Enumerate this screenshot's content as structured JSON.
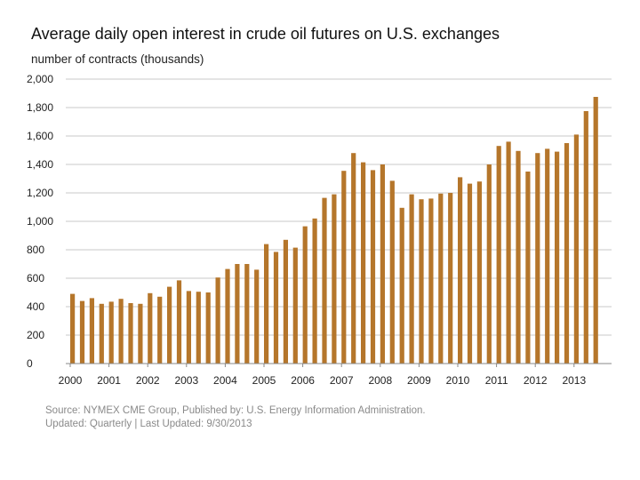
{
  "chart_data": {
    "type": "bar",
    "title": "Average daily open interest in crude oil futures on U.S. exchanges",
    "ylabel": "number of contracts (thousands)",
    "xlabel": "",
    "ylim": [
      0,
      2000
    ],
    "yticks": [
      "0",
      "200",
      "400",
      "600",
      "800",
      "1,000",
      "1,200",
      "1,400",
      "1,600",
      "1,800",
      "2,000"
    ],
    "ytick_values": [
      0,
      200,
      400,
      600,
      800,
      1000,
      1200,
      1400,
      1600,
      1800,
      2000
    ],
    "xticks": [
      "2000",
      "2001",
      "2002",
      "2003",
      "2004",
      "2005",
      "2006",
      "2007",
      "2008",
      "2009",
      "2010",
      "2011",
      "2012",
      "2013"
    ],
    "frequency": "quarterly",
    "start": "2000 Q1",
    "bar_color": "#B5762B",
    "grid": true,
    "values": [
      490,
      440,
      460,
      420,
      435,
      455,
      425,
      420,
      495,
      470,
      540,
      585,
      510,
      505,
      500,
      605,
      665,
      700,
      700,
      660,
      840,
      785,
      870,
      815,
      965,
      1020,
      1165,
      1190,
      1355,
      1480,
      1415,
      1360,
      1400,
      1285,
      1095,
      1190,
      1155,
      1160,
      1195,
      1200,
      1310,
      1265,
      1280,
      1400,
      1530,
      1560,
      1495,
      1350,
      1480,
      1510,
      1490,
      1550,
      1610,
      1775,
      1875
    ]
  },
  "source": {
    "line1": "Source: NYMEX CME Group, Published by: U.S. Energy Information Administration.",
    "line2": "Updated: Quarterly | Last Updated: 9/30/2013"
  }
}
